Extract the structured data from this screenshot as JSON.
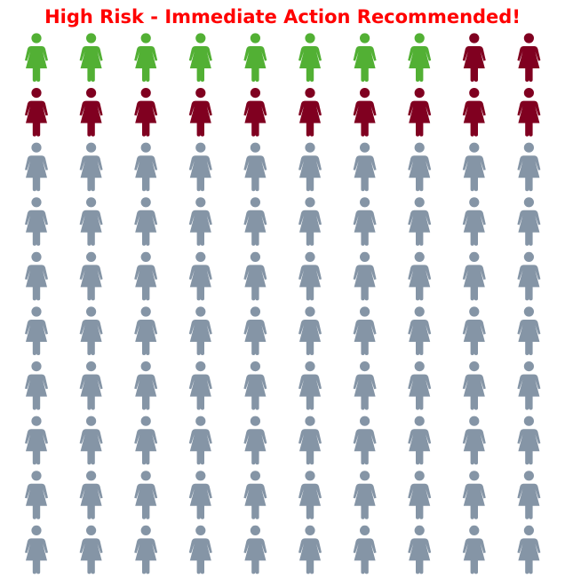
{
  "chart_data": {
    "type": "pictogram",
    "title": "High Risk - Immediate Action Recommended!",
    "title_color": "#ff0000",
    "icon": "female-person-icon",
    "rows": 10,
    "columns": 10,
    "total": 100,
    "series": [
      {
        "count": 8,
        "color": "#52b034"
      },
      {
        "count": 12,
        "color": "#800020"
      },
      {
        "count": 80,
        "color": "#8595a6"
      }
    ]
  }
}
